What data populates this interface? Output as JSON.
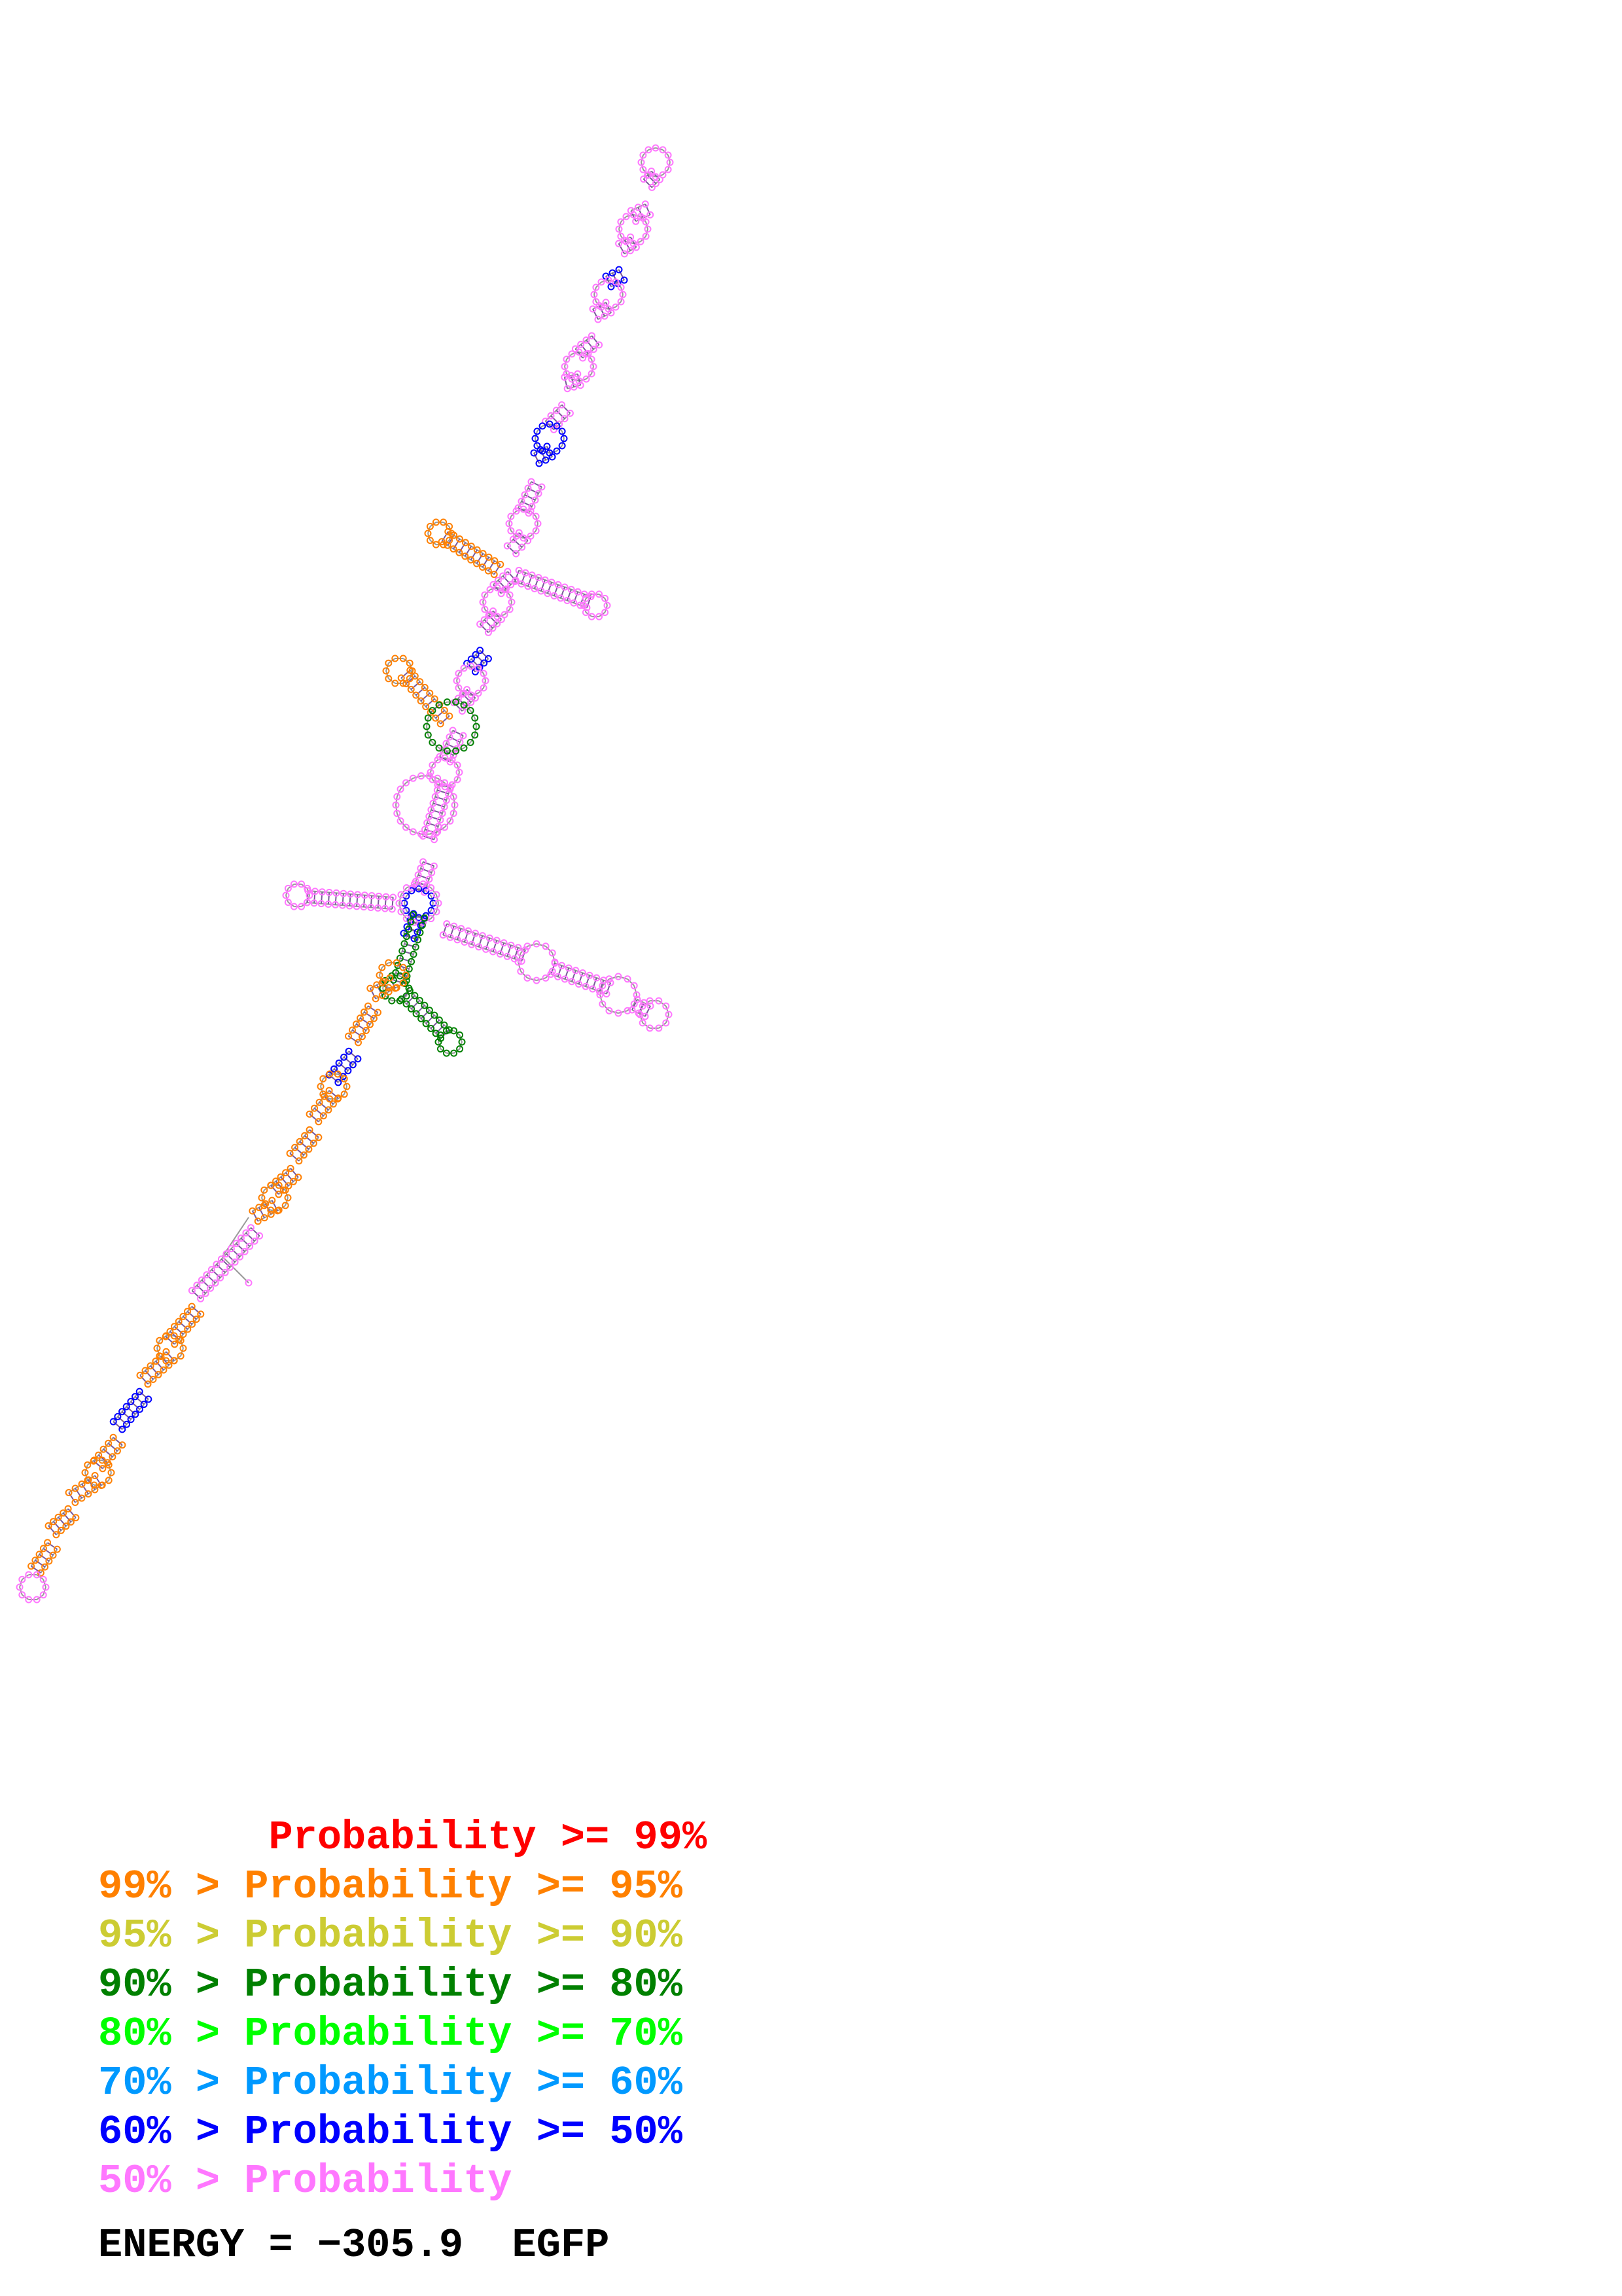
{
  "legend": {
    "rows": [
      {
        "text": "       Probability >= 99%",
        "color": "#ff0000"
      },
      {
        "text": "99% > Probability >= 95%",
        "color": "#ff8000"
      },
      {
        "text": "95% > Probability >= 90%",
        "color": "#cccc33"
      },
      {
        "text": "90% > Probability >= 80%",
        "color": "#008000"
      },
      {
        "text": "80% > Probability >= 70%",
        "color": "#00ff00"
      },
      {
        "text": "70% > Probability >= 60%",
        "color": "#0099ff"
      },
      {
        "text": "60% > Probability >= 50%",
        "color": "#0000ff"
      },
      {
        "text": "50% > Probability",
        "color": "#ff77ff"
      }
    ]
  },
  "footer": {
    "energy_label": "ENERGY = ",
    "energy_value": "−305.9",
    "sequence_name": "EGFP"
  },
  "structure_colors": {
    "low": "#ff77ff",
    "mid_blue": "#0000ff",
    "green": "#008000",
    "orange": "#ff8000",
    "backbone": "#888888"
  }
}
